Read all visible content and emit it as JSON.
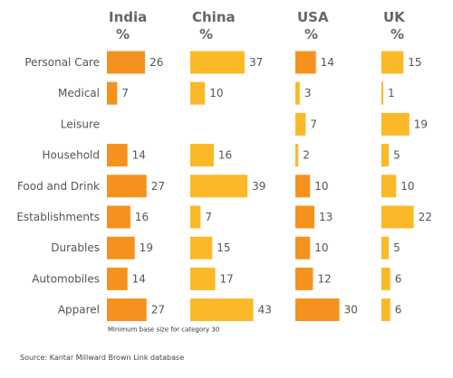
{
  "chart_data": {
    "type": "bar",
    "orientation": "horizontal",
    "categories": [
      "Personal Care",
      "Medical",
      "Leisure",
      "Household",
      "Food and Drink",
      "Establishments",
      "Durables",
      "Automobiles",
      "Apparel"
    ],
    "series": [
      {
        "name": "India",
        "unit": "%",
        "values": [
          26,
          7,
          null,
          14,
          27,
          16,
          19,
          14,
          27
        ]
      },
      {
        "name": "China",
        "unit": "%",
        "values": [
          37,
          10,
          null,
          16,
          39,
          7,
          15,
          17,
          43
        ]
      },
      {
        "name": "USA",
        "unit": "%",
        "values": [
          14,
          3,
          7,
          2,
          10,
          13,
          10,
          12,
          30
        ]
      },
      {
        "name": "UK",
        "unit": "%",
        "values": [
          15,
          1,
          19,
          5,
          10,
          22,
          5,
          6,
          6
        ]
      }
    ],
    "colors": {
      "orange": "#f5921e",
      "yellow": "#fbb829"
    },
    "note": "Minimum base size for category 30",
    "source": "Source: Kantar Millward Brown Link database"
  }
}
